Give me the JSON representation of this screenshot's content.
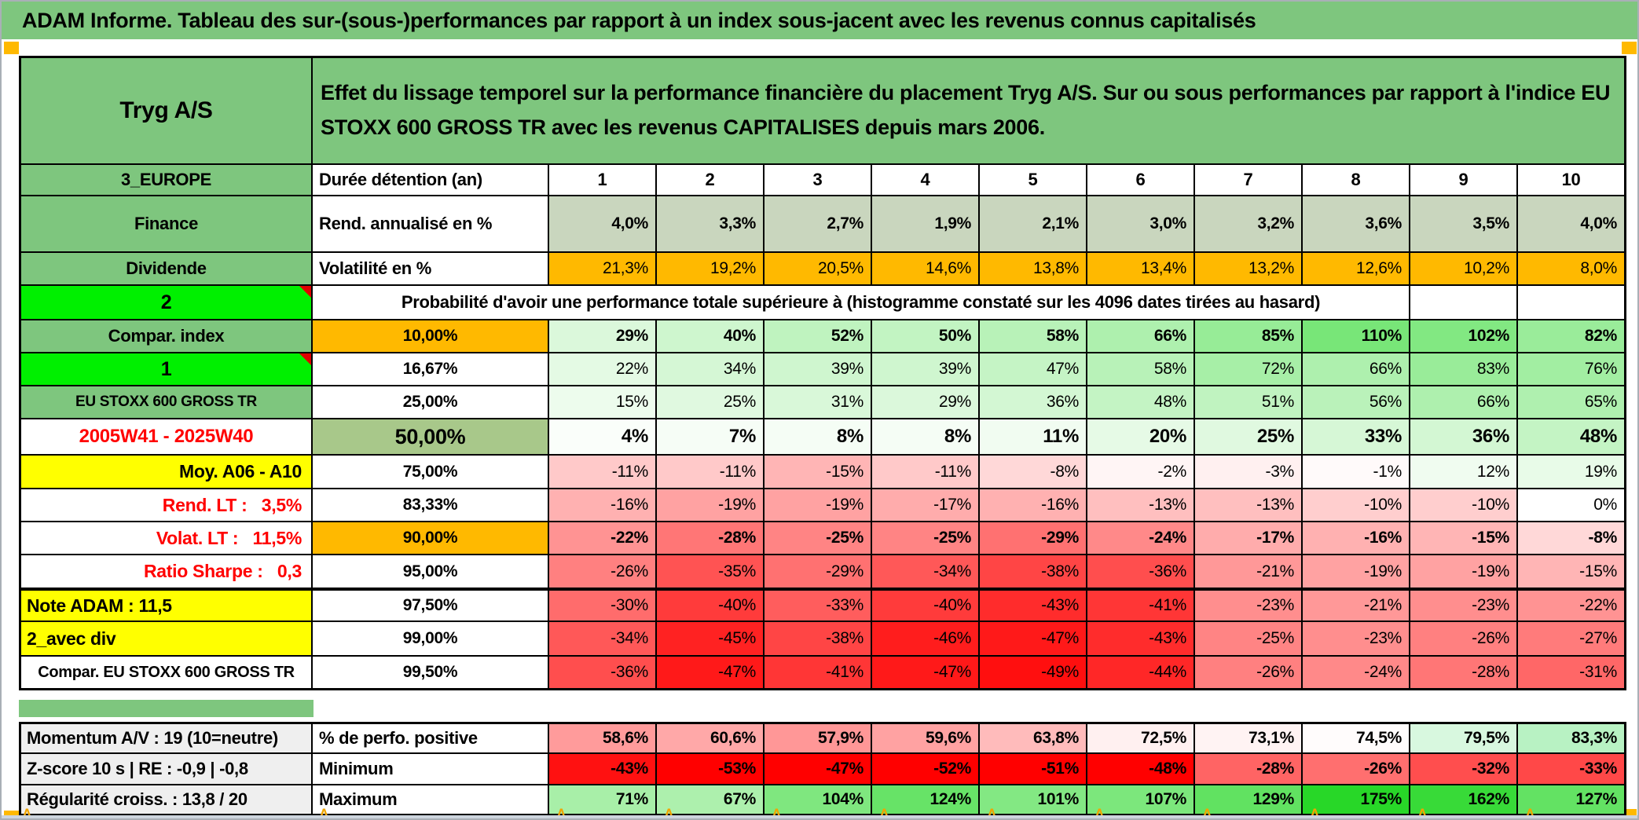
{
  "banner": {
    "title": "ADAM Informe. Tableau des sur-(sous-)performances par rapport à un index sous-jacent avec les revenus connus capitalisés"
  },
  "header": {
    "asset": "Tryg A/S",
    "description": "Effet du lissage temporel sur la performance financière du placement Tryg A/S. Sur ou sous performances par rapport à l'indice EU STOXX 600 GROSS TR avec les revenus CAPITALISES depuis mars 2006."
  },
  "colors": {
    "header_green": "#7EC67E",
    "lime_green": "#00F000",
    "orange": "#FFB900",
    "yellow": "#FFFF00",
    "sage": "#C9D6BE",
    "fifty_green": "#A8C88A",
    "gray_label": "#EFEFEF",
    "red_text": "#FF0000",
    "strongest_green": "#28D728",
    "strongest_red": "#FF0000"
  },
  "table": {
    "rows": [
      {
        "label": "3_EUROPE",
        "label_style": "green",
        "metric": "Durée détention (an)",
        "metric_style": "left",
        "values": [
          "1",
          "2",
          "3",
          "4",
          "5",
          "6",
          "7",
          "8",
          "9",
          "10"
        ],
        "value_style": "head"
      },
      {
        "label": "Finance",
        "label_style": "green",
        "metric": "Rend. annualisé en %",
        "metric_style": "left",
        "values": [
          "4,0%",
          "3,3%",
          "2,7%",
          "1,9%",
          "2,1%",
          "3,0%",
          "3,2%",
          "3,6%",
          "3,5%",
          "4,0%"
        ],
        "value_style": "sage"
      },
      {
        "label": "Dividende",
        "label_style": "green",
        "metric": "Volatilité en %",
        "metric_style": "left",
        "values": [
          "21,3%",
          "19,2%",
          "20,5%",
          "14,6%",
          "13,8%",
          "13,4%",
          "13,2%",
          "12,6%",
          "10,2%",
          "8,0%"
        ],
        "value_style": "orange"
      },
      {
        "label": "2",
        "label_style": "lime",
        "note_marker": true,
        "merged_text": "Probabilité d'avoir une performance totale supérieure à (histogramme constaté sur les 4096 dates tirées au hasard)",
        "trailing_empty": 2
      },
      {
        "label": "Compar. index",
        "label_style": "green",
        "metric": "10,00%",
        "metric_style": "pct-orange",
        "values": [
          "29%",
          "40%",
          "52%",
          "50%",
          "58%",
          "66%",
          "85%",
          "110%",
          "102%",
          "82%"
        ],
        "value_style": "heat-bold"
      },
      {
        "label": "1",
        "label_style": "lime",
        "note_marker": true,
        "metric": "16,67%",
        "metric_style": "pct",
        "values": [
          "22%",
          "34%",
          "39%",
          "39%",
          "47%",
          "58%",
          "72%",
          "66%",
          "83%",
          "76%"
        ],
        "value_style": "heat"
      },
      {
        "label": "EU STOXX 600 GROSS TR",
        "label_style": "green-sm",
        "metric": "25,00%",
        "metric_style": "pct",
        "values": [
          "15%",
          "25%",
          "31%",
          "29%",
          "36%",
          "48%",
          "51%",
          "56%",
          "66%",
          "65%"
        ],
        "value_style": "heat"
      },
      {
        "label": "2005W41 - 2025W40",
        "label_style": "red-center",
        "metric": "50,00%",
        "metric_style": "pct-fifty",
        "values": [
          "4%",
          "7%",
          "8%",
          "8%",
          "11%",
          "20%",
          "25%",
          "33%",
          "36%",
          "48%"
        ],
        "value_style": "heat-big"
      },
      {
        "label": "Moy. A06 - A10",
        "label_style": "yellow-right",
        "metric": "75,00%",
        "metric_style": "pct",
        "values": [
          "-11%",
          "-11%",
          "-15%",
          "-11%",
          "-8%",
          "-2%",
          "-3%",
          "-1%",
          "12%",
          "19%"
        ],
        "value_style": "heat"
      },
      {
        "label": "Rend. LT :   3,5%",
        "label_style": "red-right",
        "metric": "83,33%",
        "metric_style": "pct",
        "values": [
          "-16%",
          "-19%",
          "-19%",
          "-17%",
          "-16%",
          "-13%",
          "-13%",
          "-10%",
          "-10%",
          "0%"
        ],
        "value_style": "heat"
      },
      {
        "label": "Volat. LT :   11,5%",
        "label_style": "red-right",
        "metric": "90,00%",
        "metric_style": "pct-orange",
        "values": [
          "-22%",
          "-28%",
          "-25%",
          "-25%",
          "-29%",
          "-24%",
          "-17%",
          "-16%",
          "-15%",
          "-8%"
        ],
        "value_style": "heat-bold"
      },
      {
        "label": "Ratio Sharpe :   0,3",
        "label_style": "red-right",
        "metric": "95,00%",
        "metric_style": "pct",
        "values": [
          "-26%",
          "-35%",
          "-29%",
          "-34%",
          "-38%",
          "-36%",
          "-21%",
          "-19%",
          "-19%",
          "-15%"
        ],
        "value_style": "heat"
      },
      {
        "label": "Note ADAM : 11,5",
        "label_style": "yellow-left",
        "metric": "97,50%",
        "metric_style": "pct",
        "thick_top": true,
        "values": [
          "-30%",
          "-40%",
          "-33%",
          "-40%",
          "-43%",
          "-41%",
          "-23%",
          "-21%",
          "-23%",
          "-22%"
        ],
        "value_style": "heat"
      },
      {
        "label": "2_avec div",
        "label_style": "yellow-left",
        "metric": "99,00%",
        "metric_style": "pct",
        "values": [
          "-34%",
          "-45%",
          "-38%",
          "-46%",
          "-47%",
          "-43%",
          "-25%",
          "-23%",
          "-26%",
          "-27%"
        ],
        "value_style": "heat"
      },
      {
        "label": "Compar. EU STOXX 600 GROSS TR",
        "label_style": "plain-center",
        "metric": "99,50%",
        "metric_style": "pct",
        "values": [
          "-36%",
          "-47%",
          "-41%",
          "-47%",
          "-49%",
          "-44%",
          "-26%",
          "-24%",
          "-28%",
          "-31%"
        ],
        "value_style": "heat"
      }
    ],
    "bottom_rows": [
      {
        "label": "Momentum A/V : 19 (10=neutre)",
        "label_style": "gray",
        "metric": "% de perfo. positive",
        "metric_style": "left",
        "values": [
          "58,6%",
          "60,6%",
          "57,9%",
          "59,6%",
          "63,8%",
          "72,5%",
          "73,1%",
          "74,5%",
          "79,5%",
          "83,3%"
        ],
        "value_style": "perfo"
      },
      {
        "label": "Z-score 10 s | RE : -0,9 | -0,8",
        "label_style": "gray",
        "metric": "Minimum",
        "metric_style": "left",
        "values": [
          "-43%",
          "-53%",
          "-47%",
          "-52%",
          "-51%",
          "-48%",
          "-28%",
          "-26%",
          "-32%",
          "-33%"
        ],
        "value_style": "min"
      },
      {
        "label": "Régularité croiss. : 13,8 / 20",
        "label_style": "gray",
        "metric": "Maximum",
        "metric_style": "left",
        "values": [
          "71%",
          "67%",
          "104%",
          "124%",
          "101%",
          "107%",
          "129%",
          "175%",
          "162%",
          "127%"
        ],
        "value_style": "max"
      }
    ]
  }
}
